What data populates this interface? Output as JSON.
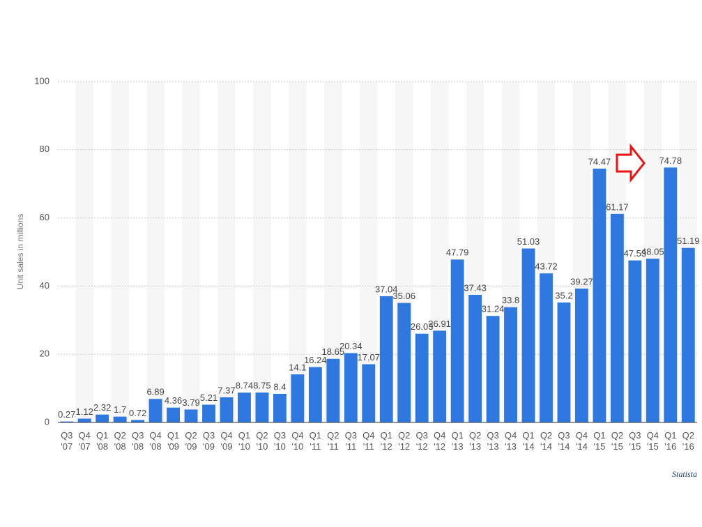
{
  "chart_data": {
    "type": "bar",
    "y_axis_label": "Unit sales in millions",
    "credit": "Statista",
    "categories": [
      [
        "Q3",
        "'07"
      ],
      [
        "Q4",
        "'07"
      ],
      [
        "Q1",
        "'08"
      ],
      [
        "Q2",
        "'08"
      ],
      [
        "Q3",
        "'08"
      ],
      [
        "Q4",
        "'08"
      ],
      [
        "Q1",
        "'09"
      ],
      [
        "Q2",
        "'09"
      ],
      [
        "Q3",
        "'09"
      ],
      [
        "Q4",
        "'09"
      ],
      [
        "Q1",
        "'10"
      ],
      [
        "Q2",
        "'10"
      ],
      [
        "Q3",
        "'10"
      ],
      [
        "Q4",
        "'10"
      ],
      [
        "Q1",
        "'11"
      ],
      [
        "Q2",
        "'11"
      ],
      [
        "Q3",
        "'11"
      ],
      [
        "Q4",
        "'11"
      ],
      [
        "Q1",
        "'12"
      ],
      [
        "Q2",
        "'12"
      ],
      [
        "Q3",
        "'12"
      ],
      [
        "Q4",
        "'12"
      ],
      [
        "Q1",
        "'13"
      ],
      [
        "Q2",
        "'13"
      ],
      [
        "Q3",
        "'13"
      ],
      [
        "Q4",
        "'13"
      ],
      [
        "Q1",
        "'14"
      ],
      [
        "Q2",
        "'14"
      ],
      [
        "Q3",
        "'14"
      ],
      [
        "Q4",
        "'14"
      ],
      [
        "Q1",
        "'15"
      ],
      [
        "Q2",
        "'15"
      ],
      [
        "Q3",
        "'15"
      ],
      [
        "Q4",
        "'15"
      ],
      [
        "Q1",
        "'16"
      ],
      [
        "Q2",
        "'16"
      ]
    ],
    "values": [
      0.27,
      1.12,
      2.32,
      1.7,
      0.72,
      6.89,
      4.36,
      3.79,
      5.21,
      7.37,
      8.74,
      8.75,
      8.4,
      14.1,
      16.24,
      18.65,
      20.34,
      17.07,
      37.04,
      35.06,
      26.03,
      26.91,
      47.79,
      37.43,
      31.24,
      33.8,
      51.03,
      43.72,
      35.2,
      39.27,
      74.47,
      61.17,
      47.53,
      48.05,
      74.78,
      51.19
    ],
    "color": "#2f78e0",
    "ylim": [
      0,
      100
    ],
    "yticks": [
      0,
      20,
      40,
      60,
      80,
      100
    ],
    "grid": true
  }
}
